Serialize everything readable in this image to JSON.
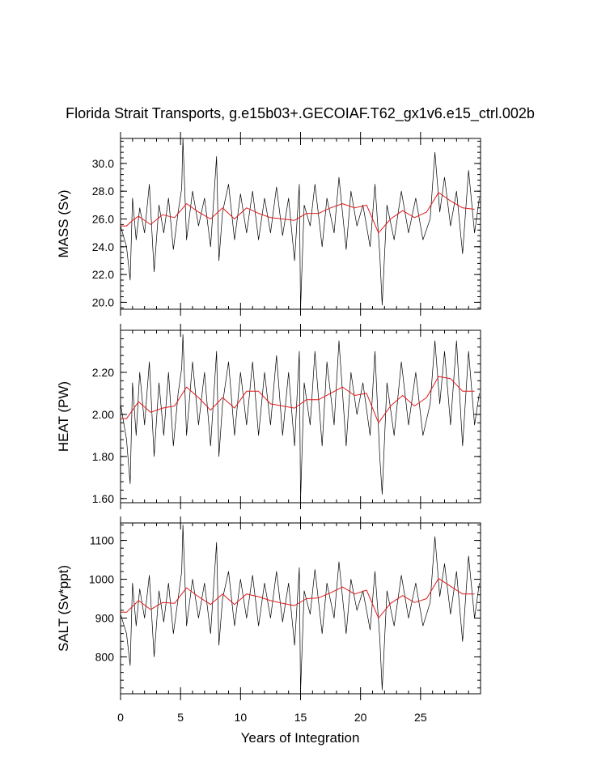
{
  "chart_data": {
    "type": "line",
    "title": "Florida Strait Transports, g.e15b03+.GECOIAF.T62_gx1v6.e15_ctrl.002b",
    "xlabel": "Years of Integration",
    "xlim": [
      0,
      30
    ],
    "x_ticks": [
      0,
      5,
      10,
      15,
      20,
      25
    ],
    "x_tick_labels": [
      "0",
      "5",
      "10",
      "15",
      "20",
      "25"
    ],
    "colors": {
      "raw": "#000000",
      "smooth": "#e0191b"
    },
    "panels": [
      {
        "ylabel": "MASS (Sv)",
        "ylim": [
          19.5,
          31.8
        ],
        "y_ticks": [
          20,
          22,
          24,
          26,
          28,
          30
        ],
        "y_tick_labels": [
          "20.0",
          "22.0",
          "24.0",
          "26.0",
          "28.0",
          "30.0"
        ],
        "series": [
          {
            "style": "raw monthly",
            "x": [
              0.0,
              0.5,
              0.8,
              1.0,
              1.3,
              1.6,
              2.0,
              2.4,
              2.8,
              3.2,
              3.6,
              4.0,
              4.4,
              4.8,
              5.1,
              5.2,
              5.5,
              6.0,
              6.5,
              7.0,
              7.5,
              8.0,
              8.2,
              8.5,
              9.0,
              9.5,
              10.0,
              10.5,
              11.0,
              11.5,
              12.0,
              12.5,
              13.0,
              13.5,
              14.0,
              14.5,
              14.9,
              15.0,
              15.3,
              15.8,
              16.2,
              16.8,
              17.2,
              17.8,
              18.2,
              18.8,
              19.2,
              19.7,
              20.2,
              20.8,
              21.2,
              21.6,
              21.8,
              22.2,
              22.8,
              23.4,
              24.0,
              24.6,
              25.2,
              25.8,
              26.2,
              26.6,
              27.0,
              27.5,
              28.0,
              28.5,
              29.0,
              29.5,
              29.9
            ],
            "y": [
              25.5,
              24.0,
              21.6,
              27.5,
              24.5,
              26.8,
              25.0,
              28.5,
              22.2,
              27.0,
              25.0,
              27.5,
              23.8,
              26.5,
              28.2,
              31.8,
              24.5,
              28.0,
              25.5,
              27.5,
              24.0,
              30.5,
              23.0,
              26.5,
              28.5,
              24.5,
              27.8,
              25.0,
              28.0,
              24.5,
              27.5,
              25.0,
              28.3,
              24.8,
              27.5,
              23.0,
              28.5,
              19.5,
              27.0,
              25.5,
              28.5,
              24.0,
              27.5,
              25.0,
              29.0,
              23.8,
              28.0,
              25.5,
              27.0,
              24.0,
              28.5,
              23.5,
              19.8,
              27.0,
              24.5,
              28.0,
              25.0,
              27.5,
              24.5,
              26.0,
              30.8,
              26.5,
              29.0,
              25.5,
              28.0,
              23.5,
              29.5,
              25.0,
              27.5
            ]
          },
          {
            "style": "smoothed annual",
            "x": [
              0.0,
              0.5,
              1.0,
              1.5,
              2.5,
              3.5,
              4.5,
              5.5,
              6.5,
              7.5,
              8.5,
              9.5,
              10.5,
              11.5,
              12.5,
              13.5,
              14.5,
              15.5,
              16.5,
              17.5,
              18.5,
              19.5,
              20.5,
              21.5,
              22.5,
              23.5,
              24.5,
              25.5,
              26.5,
              27.5,
              28.5,
              29.5
            ],
            "y": [
              25.5,
              25.5,
              25.9,
              26.2,
              25.6,
              26.3,
              26.1,
              27.1,
              26.5,
              26.0,
              26.8,
              26.0,
              26.8,
              26.4,
              26.1,
              26.0,
              25.9,
              26.4,
              26.4,
              26.8,
              27.1,
              26.8,
              27.0,
              25.0,
              26.0,
              26.6,
              26.1,
              26.5,
              27.9,
              27.3,
              26.8,
              26.7
            ]
          }
        ]
      },
      {
        "ylabel": "HEAT (PW)",
        "ylim": [
          1.58,
          2.4
        ],
        "y_ticks": [
          1.6,
          1.8,
          2.0,
          2.2
        ],
        "y_tick_labels": [
          "1.60",
          "1.80",
          "2.00",
          "2.20"
        ],
        "series": [
          {
            "style": "raw monthly",
            "x": [
              0.0,
              0.5,
              0.8,
              1.0,
              1.3,
              1.6,
              2.0,
              2.4,
              2.8,
              3.2,
              3.6,
              4.0,
              4.4,
              4.8,
              5.1,
              5.2,
              5.5,
              6.0,
              6.5,
              7.0,
              7.5,
              8.0,
              8.2,
              8.5,
              9.0,
              9.5,
              10.0,
              10.5,
              11.0,
              11.5,
              12.0,
              12.5,
              13.0,
              13.5,
              14.0,
              14.5,
              14.9,
              15.0,
              15.3,
              15.8,
              16.2,
              16.8,
              17.2,
              17.8,
              18.2,
              18.8,
              19.2,
              19.7,
              20.2,
              20.8,
              21.2,
              21.6,
              21.8,
              22.2,
              22.8,
              23.4,
              24.0,
              24.6,
              25.2,
              25.8,
              26.2,
              26.6,
              27.0,
              27.5,
              28.0,
              28.5,
              29.0,
              29.5,
              29.9
            ],
            "y": [
              2.05,
              1.88,
              1.67,
              2.15,
              1.9,
              2.2,
              1.95,
              2.25,
              1.8,
              2.15,
              1.9,
              2.2,
              1.85,
              2.1,
              2.22,
              2.38,
              1.9,
              2.25,
              1.95,
              2.2,
              1.85,
              2.3,
              1.8,
              2.05,
              2.25,
              1.9,
              2.2,
              1.95,
              2.25,
              1.9,
              2.2,
              1.95,
              2.28,
              1.9,
              2.2,
              1.85,
              2.3,
              1.59,
              2.15,
              1.95,
              2.3,
              1.85,
              2.25,
              1.95,
              2.35,
              1.85,
              2.2,
              2.0,
              2.15,
              1.9,
              2.3,
              1.8,
              1.62,
              2.15,
              1.9,
              2.25,
              1.95,
              2.2,
              1.9,
              2.05,
              2.35,
              2.05,
              2.3,
              1.95,
              2.35,
              1.85,
              2.3,
              1.95,
              2.1
            ]
          },
          {
            "style": "smoothed annual",
            "x": [
              0.0,
              0.5,
              1.0,
              1.5,
              2.5,
              3.5,
              4.5,
              5.5,
              6.5,
              7.5,
              8.5,
              9.5,
              10.5,
              11.5,
              12.5,
              13.5,
              14.5,
              15.5,
              16.5,
              17.5,
              18.5,
              19.5,
              20.5,
              21.5,
              22.5,
              23.5,
              24.5,
              25.5,
              26.5,
              27.5,
              28.5,
              29.5
            ],
            "y": [
              1.98,
              1.98,
              2.02,
              2.06,
              2.01,
              2.03,
              2.04,
              2.13,
              2.08,
              2.02,
              2.08,
              2.03,
              2.11,
              2.11,
              2.05,
              2.04,
              2.03,
              2.07,
              2.07,
              2.1,
              2.13,
              2.09,
              2.1,
              1.96,
              2.04,
              2.09,
              2.04,
              2.08,
              2.18,
              2.17,
              2.11,
              2.11
            ]
          }
        ]
      },
      {
        "ylabel": "SALT (Sv*ppt)",
        "ylim": [
          705,
          1145
        ],
        "y_ticks": [
          800,
          900,
          1000,
          1100
        ],
        "y_tick_labels": [
          "800",
          "900",
          "1000",
          "1100"
        ],
        "series": [
          {
            "style": "raw monthly",
            "x": [
              0.0,
              0.5,
              0.8,
              1.0,
              1.3,
              1.6,
              2.0,
              2.4,
              2.8,
              3.2,
              3.6,
              4.0,
              4.4,
              4.8,
              5.1,
              5.2,
              5.5,
              6.0,
              6.5,
              7.0,
              7.5,
              8.0,
              8.2,
              8.5,
              9.0,
              9.5,
              10.0,
              10.5,
              11.0,
              11.5,
              12.0,
              12.5,
              13.0,
              13.5,
              14.0,
              14.5,
              14.9,
              15.0,
              15.3,
              15.8,
              16.2,
              16.8,
              17.2,
              17.8,
              18.2,
              18.8,
              19.2,
              19.7,
              20.2,
              20.8,
              21.2,
              21.6,
              21.8,
              22.2,
              22.8,
              23.4,
              24.0,
              24.6,
              25.2,
              25.8,
              26.2,
              26.6,
              27.0,
              27.5,
              28.0,
              28.5,
              29.0,
              29.5,
              29.9
            ],
            "y": [
              910,
              860,
              778,
              990,
              880,
              975,
              900,
              1010,
              800,
              970,
              890,
              990,
              860,
              950,
              1020,
              1140,
              880,
              1000,
              900,
              990,
              860,
              1095,
              830,
              950,
              1020,
              880,
              1000,
              900,
              1010,
              880,
              990,
              900,
              1020,
              890,
              990,
              830,
              1030,
              710,
              970,
              910,
              1025,
              860,
              990,
              900,
              1045,
              860,
              1000,
              920,
              970,
              870,
              1020,
              850,
              715,
              970,
              880,
              1010,
              900,
              990,
              880,
              940,
              1110,
              955,
              1040,
              910,
              1020,
              840,
              1060,
              900,
              990
            ]
          },
          {
            "style": "smoothed annual",
            "x": [
              0.0,
              0.5,
              1.0,
              1.5,
              2.5,
              3.5,
              4.5,
              5.5,
              6.5,
              7.5,
              8.5,
              9.5,
              10.5,
              11.5,
              12.5,
              13.5,
              14.5,
              15.5,
              16.5,
              17.5,
              18.5,
              19.5,
              20.5,
              21.5,
              22.5,
              23.5,
              24.5,
              25.5,
              26.5,
              27.5,
              28.5,
              29.5
            ],
            "y": [
              915,
              915,
              930,
              945,
              922,
              940,
              938,
              978,
              955,
              935,
              962,
              935,
              962,
              955,
              945,
              938,
              932,
              950,
              952,
              965,
              980,
              962,
              972,
              900,
              938,
              958,
              940,
              950,
              1002,
              982,
              962,
              962
            ]
          }
        ]
      }
    ]
  }
}
